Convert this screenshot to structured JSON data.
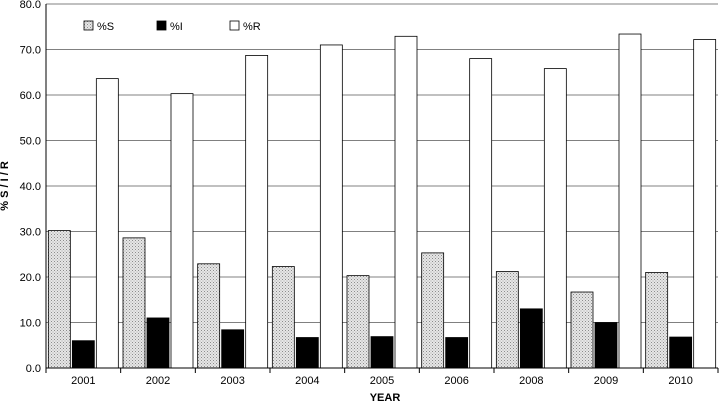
{
  "chart_data": {
    "type": "bar",
    "title": "",
    "xlabel": "YEAR",
    "ylabel": "% S / I / R",
    "categories": [
      "2001",
      "2002",
      "2003",
      "2004",
      "2005",
      "2006",
      "2008",
      "2009",
      "2010"
    ],
    "ylim": [
      0,
      80
    ],
    "yticks": [
      "0.0",
      "10.0",
      "20.0",
      "30.0",
      "40.0",
      "50.0",
      "60.0",
      "70.0",
      "80.0"
    ],
    "grid": true,
    "legend_position": "top-left",
    "series": [
      {
        "name": "%S",
        "values": [
          30.2,
          28.6,
          22.9,
          22.3,
          20.3,
          25.3,
          21.2,
          16.7,
          21.0
        ],
        "color": "#d9d9d9",
        "pattern": "dotted"
      },
      {
        "name": "%I",
        "values": [
          6.0,
          11.0,
          8.4,
          6.7,
          6.9,
          6.7,
          13.0,
          10.0,
          6.8
        ],
        "color": "#000000"
      },
      {
        "name": "%R",
        "values": [
          63.6,
          60.3,
          68.7,
          71.0,
          72.9,
          68.0,
          65.8,
          73.4,
          72.2
        ],
        "color": "#ffffff"
      }
    ]
  }
}
